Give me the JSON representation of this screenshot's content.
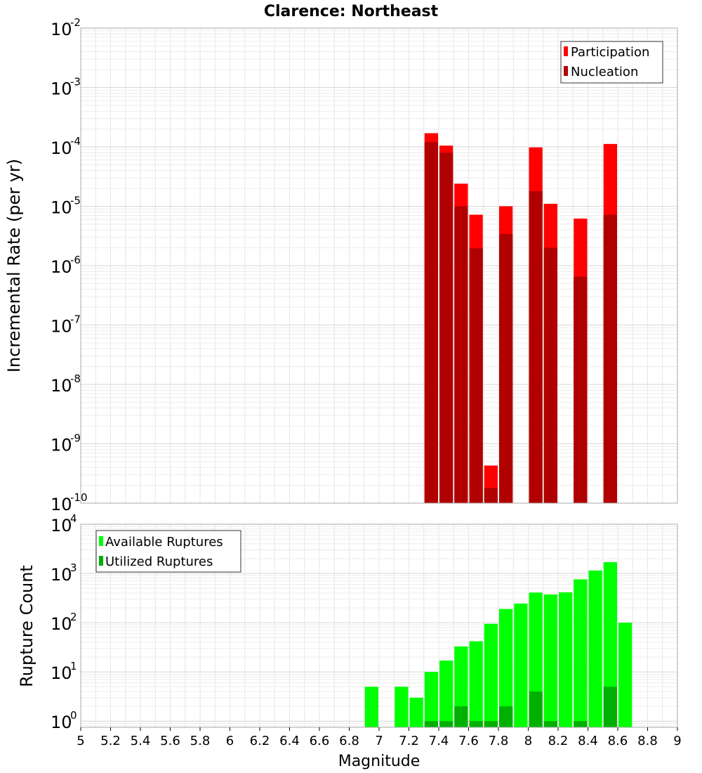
{
  "title": "Clarence: Northeast",
  "chart_data": [
    {
      "type": "bar",
      "ylabel": "Incremental Rate (per yr)",
      "xlim": [
        5,
        9
      ],
      "ylim": [
        1e-10,
        0.01
      ],
      "yscale": "log",
      "grid": true,
      "legend_position": "top-right",
      "x": [
        7.35,
        7.45,
        7.55,
        7.65,
        7.75,
        7.85,
        8.05,
        8.15,
        8.35,
        8.55
      ],
      "series": [
        {
          "name": "Participation",
          "color": "#ff0000",
          "values": [
            0.00017,
            0.000105,
            2.4e-05,
            7.2e-06,
            4.3e-10,
            1e-05,
            9.8e-05,
            1.1e-05,
            6.2e-06,
            0.000112
          ]
        },
        {
          "name": "Nucleation",
          "color": "#b00000",
          "values": [
            0.00012,
            8e-05,
            1e-05,
            1.95e-06,
            1.8e-10,
            3.4e-06,
            1.8e-05,
            2e-06,
            6.5e-07,
            7.2e-06
          ]
        }
      ]
    },
    {
      "type": "bar",
      "xlabel": "Magnitude",
      "ylabel": "Rupture Count",
      "xlim": [
        5,
        9
      ],
      "ylim": [
        0.75,
        10000.0
      ],
      "yscale": "log",
      "grid": true,
      "legend_position": "top-left",
      "x_ticks": [
        "5",
        "5.2",
        "5.4",
        "5.6",
        "5.8",
        "6",
        "6.2",
        "6.4",
        "6.6",
        "6.8",
        "7",
        "7.2",
        "7.4",
        "7.6",
        "7.8",
        "8",
        "8.2",
        "8.4",
        "8.6",
        "8.8",
        "9"
      ],
      "x": [
        6.95,
        7.15,
        7.25,
        7.35,
        7.45,
        7.55,
        7.65,
        7.75,
        7.85,
        7.95,
        8.05,
        8.15,
        8.25,
        8.35,
        8.45,
        8.55,
        8.65
      ],
      "series": [
        {
          "name": "Available Ruptures",
          "color": "#00ff00",
          "values": [
            5,
            5,
            3,
            10,
            17,
            33,
            42,
            95,
            190,
            245,
            410,
            375,
            415,
            760,
            1150,
            1700,
            100
          ]
        },
        {
          "name": "Utilized Ruptures",
          "color": "#00b000",
          "values": [
            null,
            null,
            null,
            1,
            1,
            2,
            1,
            1,
            2,
            null,
            4,
            1,
            null,
            1,
            null,
            5,
            null
          ]
        }
      ]
    }
  ]
}
